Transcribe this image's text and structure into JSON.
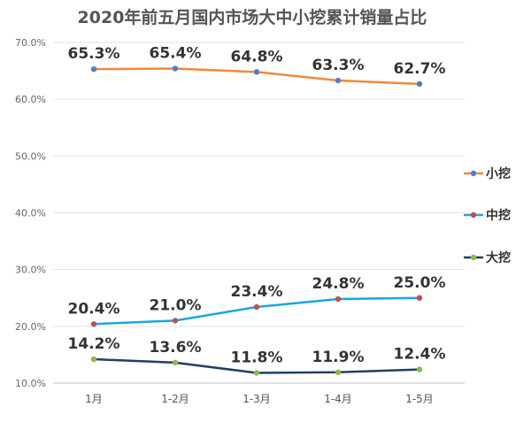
{
  "chart_data": {
    "type": "line",
    "title": "2020年前五月国内市场大中小挖累计销量占比",
    "categories": [
      "1月",
      "1-2月",
      "1-3月",
      "1-4月",
      "1-5月"
    ],
    "ylim": [
      0.1,
      0.7
    ],
    "yticks": [
      "10.0%",
      "20.0%",
      "30.0%",
      "40.0%",
      "50.0%",
      "60.0%",
      "70.0%"
    ],
    "grid": true,
    "legend_position": "right",
    "series": [
      {
        "name": "小挖",
        "color": "#f0893a",
        "marker_color": "#4f7fc0",
        "values": [
          0.653,
          0.654,
          0.648,
          0.633,
          0.627
        ],
        "labels": [
          "65.3%",
          "65.4%",
          "64.8%",
          "63.3%",
          "62.7%"
        ]
      },
      {
        "name": "中挖",
        "color": "#1aa6e0",
        "marker_color": "#c0504d",
        "values": [
          0.204,
          0.21,
          0.234,
          0.248,
          0.25
        ],
        "labels": [
          "20.4%",
          "21.0%",
          "23.4%",
          "24.8%",
          "25.0%"
        ]
      },
      {
        "name": "大挖",
        "color": "#1f3f66",
        "marker_color": "#8fb84a",
        "values": [
          0.142,
          0.136,
          0.118,
          0.119,
          0.124
        ],
        "labels": [
          "14.2%",
          "13.6%",
          "11.8%",
          "11.9%",
          "12.4%"
        ]
      }
    ]
  }
}
